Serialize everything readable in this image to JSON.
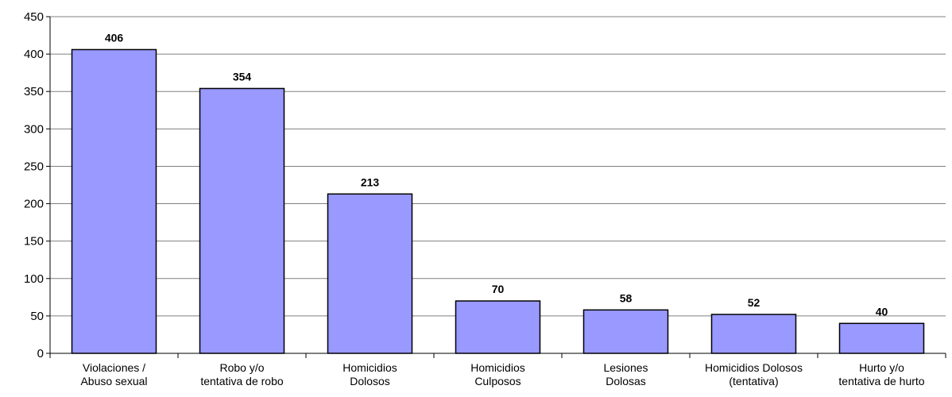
{
  "chart_data": {
    "type": "bar",
    "categories": [
      [
        "Violaciones /",
        "Abuso sexual"
      ],
      [
        "Robo y/o",
        "tentativa de robo"
      ],
      [
        "Homicidios",
        "Dolosos"
      ],
      [
        "Homicidios",
        "Culposos"
      ],
      [
        "Lesiones",
        "Dolosas"
      ],
      [
        "Homicidios Dolosos",
        "(tentativa)"
      ],
      [
        "Hurto y/o",
        "tentativa de hurto"
      ]
    ],
    "values": [
      406,
      354,
      213,
      70,
      58,
      52,
      40
    ],
    "ylim": [
      0,
      450
    ],
    "yticks": [
      0,
      50,
      100,
      150,
      200,
      250,
      300,
      350,
      400,
      450
    ],
    "grid": true,
    "legend": "none",
    "colors": {
      "bar_fill": "#9999ff",
      "bar_stroke": "#000000",
      "grid": "#808080",
      "axis": "#000000"
    }
  }
}
